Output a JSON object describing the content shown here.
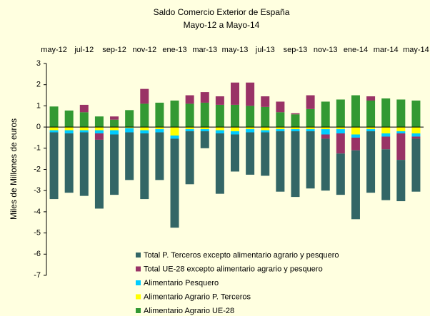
{
  "chart_data": {
    "type": "stacked_bar",
    "title": "Saldo Comercio Exterior de España",
    "subtitle": "Mayo-12 a Mayo-14",
    "y_label": "Miles de Millones de euros",
    "categories": [
      "may-12",
      null,
      "jul-12",
      null,
      "sep-12",
      null,
      "nov-12",
      null,
      "ene-13",
      null,
      "mar-13",
      null,
      "may-13",
      null,
      "jul-13",
      null,
      "sep-13",
      null,
      "nov-13",
      null,
      "ene-14",
      null,
      "mar-14",
      null,
      "may-14"
    ],
    "series": [
      {
        "name": "Total P. Terceros excepto alimentario agrario y pesquero",
        "color": "#336666",
        "values": [
          -3.15,
          -2.8,
          -3.0,
          -3.25,
          -2.85,
          -2.25,
          -3.1,
          -2.25,
          -4.2,
          -2.5,
          -0.8,
          -2.85,
          -1.75,
          -2.0,
          -2.05,
          -2.85,
          -3.1,
          -2.7,
          -2.45,
          -1.95,
          -3.25,
          -2.9,
          -2.4,
          -1.95,
          -2.5
        ]
      },
      {
        "name": "Total UE-28 excepto alimentario agrario y pesquero",
        "color": "#993366",
        "values": [
          0,
          0,
          0.35,
          -0.3,
          0.15,
          0,
          0.7,
          0,
          0,
          0.4,
          0.5,
          0.4,
          1.05,
          1.1,
          0.5,
          0.5,
          0.05,
          0.65,
          -0.2,
          -0.95,
          -0.6,
          0.2,
          -0.6,
          -1.25,
          -0.1
        ]
      },
      {
        "name": "Alimentario Pesquero",
        "color": "#00ccff",
        "values": [
          -0.1,
          -0.15,
          -0.1,
          -0.15,
          -0.2,
          -0.2,
          -0.15,
          -0.15,
          -0.15,
          -0.1,
          -0.1,
          -0.15,
          -0.15,
          -0.15,
          -0.1,
          -0.1,
          -0.1,
          -0.1,
          -0.25,
          -0.2,
          -0.15,
          -0.1,
          -0.15,
          -0.1,
          -0.15
        ]
      },
      {
        "name": "Alimentario Agrario P. Terceros",
        "color": "#ffff00",
        "values": [
          -0.15,
          -0.15,
          -0.15,
          -0.15,
          -0.15,
          -0.05,
          -0.15,
          -0.1,
          -0.4,
          -0.1,
          -0.1,
          -0.15,
          -0.2,
          -0.1,
          -0.15,
          -0.1,
          -0.1,
          -0.1,
          -0.1,
          -0.1,
          -0.35,
          -0.1,
          -0.3,
          -0.2,
          -0.3
        ]
      },
      {
        "name": "Alimentario Agrario UE-28",
        "color": "#339933",
        "values": [
          0.97,
          0.78,
          0.7,
          0.5,
          0.35,
          0.8,
          1.1,
          1.15,
          1.25,
          1.1,
          1.15,
          1.05,
          1.05,
          1.0,
          0.95,
          0.7,
          0.6,
          0.85,
          1.2,
          1.3,
          1.5,
          1.25,
          1.35,
          1.3,
          1.25
        ]
      }
    ],
    "ylim": [
      -7,
      3
    ],
    "yticks": [
      3,
      2,
      1,
      0,
      -1,
      -2,
      -3,
      -4,
      -5,
      -6,
      -7
    ]
  }
}
